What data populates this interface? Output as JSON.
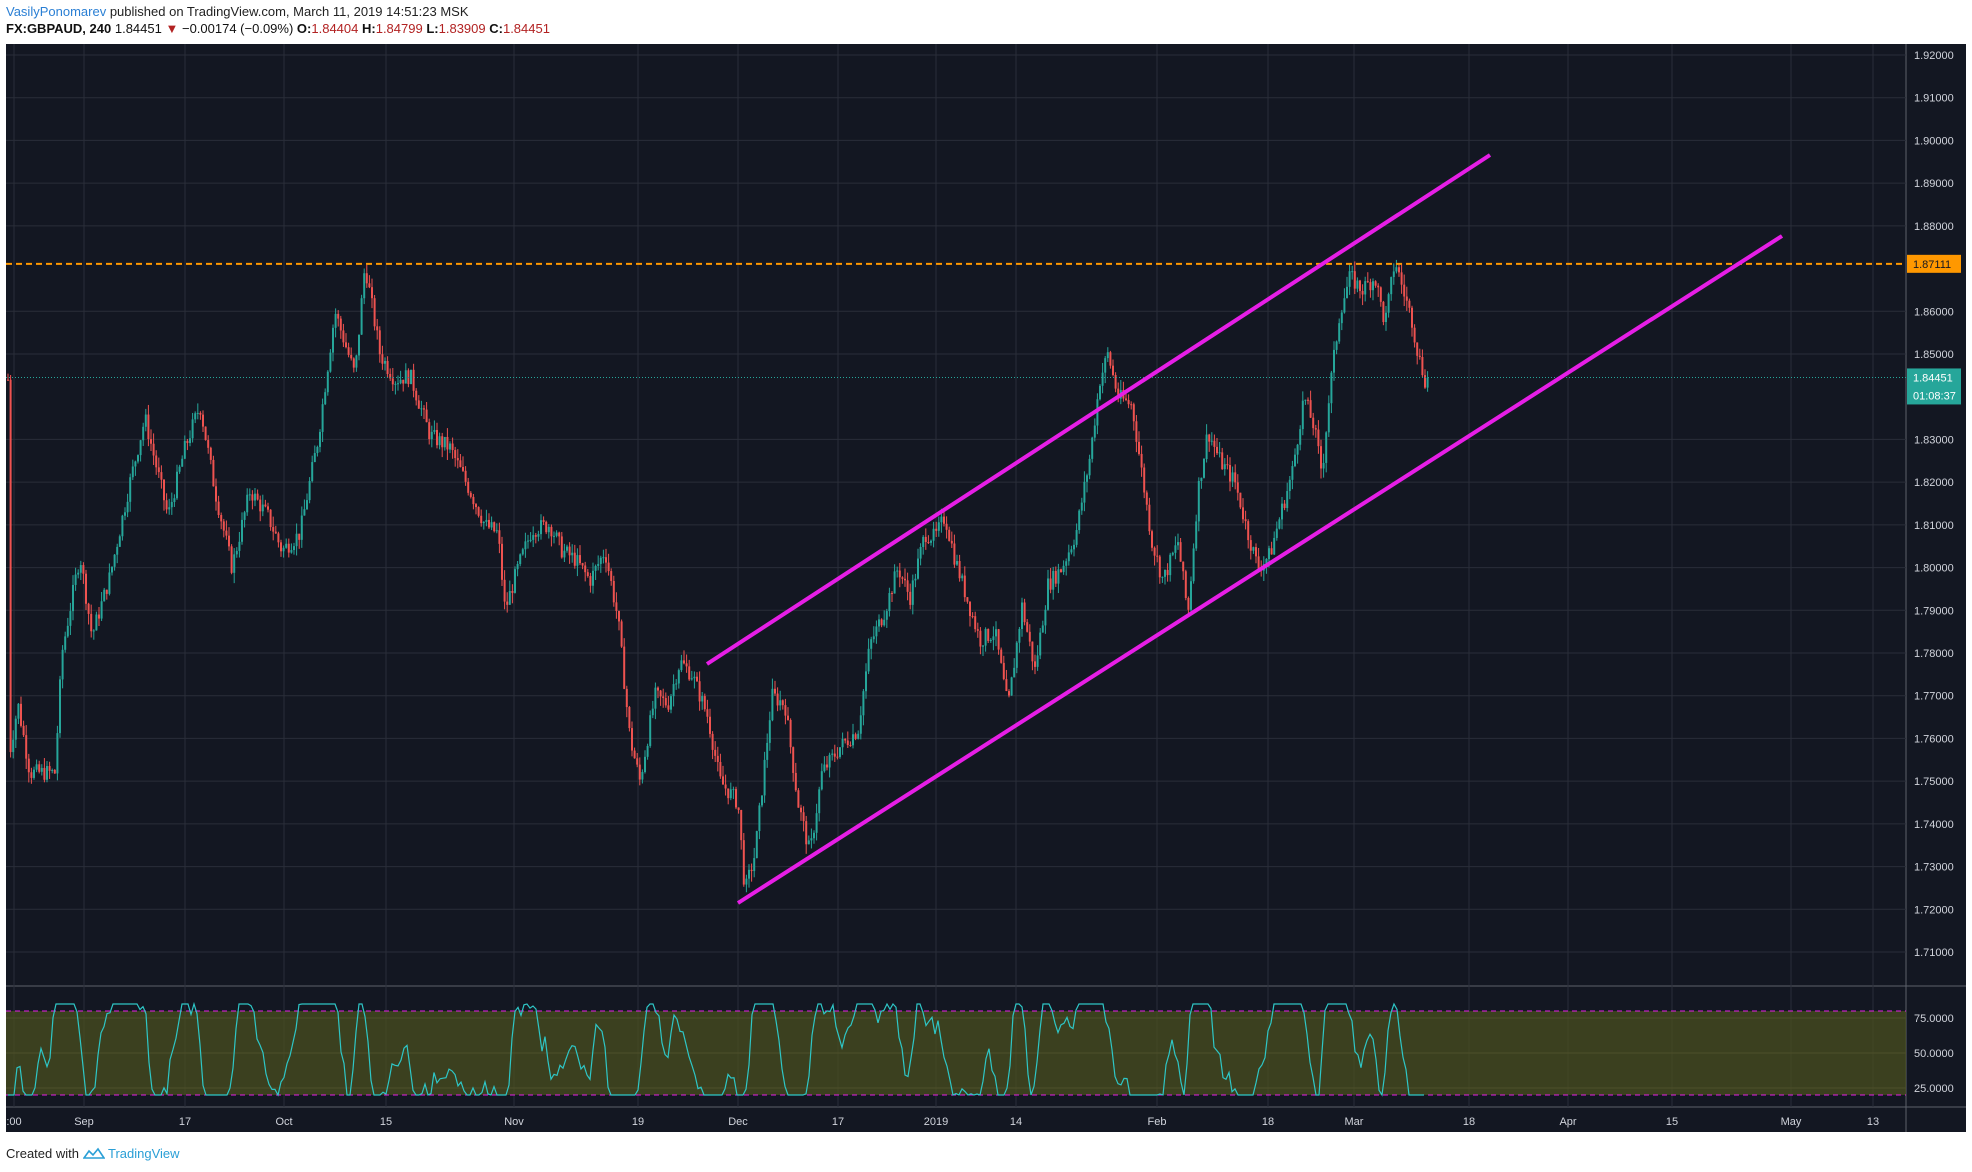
{
  "header": {
    "author": "VasilyPonomarev",
    "published_text": "published on TradingView.com, March 11, 2019 14:51:23 MSK"
  },
  "ticker": {
    "symbol": "FX:GBPAUD, 240",
    "last": "1.84451",
    "change": "−0.00174 (−0.09%)",
    "o_label": "O:",
    "o": "1.84404",
    "h_label": "H:",
    "h": "1.84799",
    "l_label": "L:",
    "l": "1.83909",
    "c_label": "C:",
    "c": "1.84451"
  },
  "colors": {
    "background": "#131722",
    "grid": "#2a2e39",
    "up": "#26a69a",
    "down": "#ef5350",
    "channel": "#e61ee6",
    "resistance": "#ff9800",
    "rsi": "#2ec6c6",
    "rsi_band": "#4a4f1f"
  },
  "price_axis": {
    "ticks": [
      "1.92000",
      "1.91000",
      "1.90000",
      "1.89000",
      "1.88000",
      "1.86000",
      "1.85000",
      "1.83000",
      "1.82000",
      "1.81000",
      "1.80000",
      "1.79000",
      "1.78000",
      "1.77000",
      "1.76000",
      "1.75000",
      "1.74000",
      "1.73000",
      "1.72000",
      "1.71000"
    ],
    "resistance_label": "1.87111",
    "last_price_label": "1.84451",
    "countdown_label": "01:08:37"
  },
  "rsi_axis": {
    "ticks": [
      "75.0000",
      "50.0000",
      "25.0000"
    ]
  },
  "time_axis": {
    "labels": [
      ":00",
      "Sep",
      "17",
      "Oct",
      "15",
      "Nov",
      "19",
      "Dec",
      "17",
      "2019",
      "14",
      "Feb",
      "18",
      "Mar",
      "18",
      "Apr",
      "15",
      "May",
      "13"
    ]
  },
  "footer": {
    "created_with": "Created with",
    "brand": "TradingView"
  }
}
